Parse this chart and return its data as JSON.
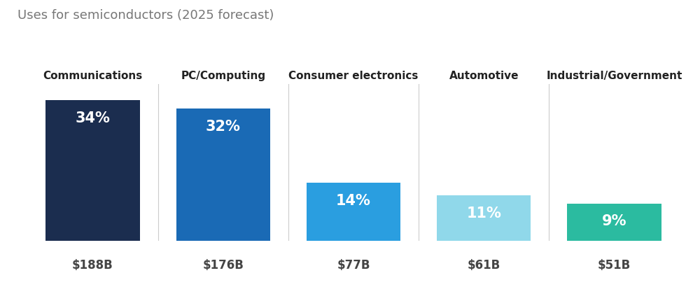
{
  "title": "Uses for semiconductors (2025 forecast)",
  "categories": [
    "Communications",
    "PC/Computing",
    "Consumer electronics",
    "Automotive",
    "Industrial/Government"
  ],
  "values": [
    34,
    32,
    14,
    11,
    9
  ],
  "dollar_labels": [
    "$188B",
    "$176B",
    "$77B",
    "$61B",
    "$51B"
  ],
  "pct_labels": [
    "34%",
    "32%",
    "14%",
    "11%",
    "9%"
  ],
  "bar_colors": [
    "#1b2d4f",
    "#1a6ab5",
    "#2a9ee0",
    "#90d8ea",
    "#2bbba0"
  ],
  "background_color": "#ffffff",
  "title_color": "#777777",
  "category_color": "#222222",
  "dollar_color": "#444444",
  "pct_text_color": "#ffffff",
  "separator_color": "#cccccc",
  "title_fontsize": 13,
  "category_fontsize": 11,
  "pct_fontsize": 15,
  "dollar_fontsize": 12,
  "ylim": [
    0,
    38
  ],
  "bar_width": 0.72
}
